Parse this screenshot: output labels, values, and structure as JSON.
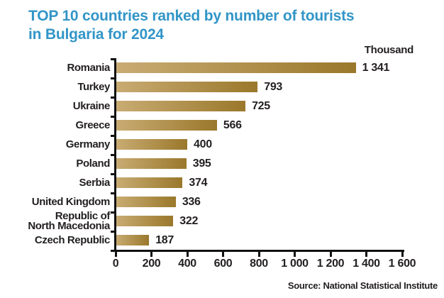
{
  "title": {
    "line1": "TOP 10 countries ranked by number of tourists",
    "line2": "in Bulgaria for 2024"
  },
  "unit_label": "Thousand",
  "source": "Source: National Statistical Institute",
  "colors": {
    "title_blue": "#3295c7",
    "bar_light": "#c9ac73",
    "bar_dark": "#9a782b",
    "text": "#231f20",
    "axis": "#111111"
  },
  "chart_data": {
    "type": "bar",
    "orientation": "horizontal",
    "title": "TOP 10 countries ranked by number of tourists in Bulgaria for 2024",
    "unit": "Thousand",
    "categories": [
      "Romania",
      "Turkey",
      "Ukraine",
      "Greece",
      "Germany",
      "Poland",
      "Serbia",
      "United Kingdom",
      "Republic of\nNorth Macedonia",
      "Czech Republic"
    ],
    "values": [
      1341,
      793,
      725,
      566,
      400,
      395,
      374,
      336,
      322,
      187
    ],
    "value_labels": [
      "1 341",
      "793",
      "725",
      "566",
      "400",
      "395",
      "374",
      "336",
      "322",
      "187"
    ],
    "xlabel": "",
    "ylabel": "",
    "xlim": [
      0,
      1600
    ],
    "x_ticks": [
      0,
      200,
      400,
      600,
      800,
      1000,
      1200,
      1400,
      1600
    ],
    "x_tick_labels": [
      "0",
      "200",
      "400",
      "600",
      "800",
      "1 000",
      "1 200",
      "1 400",
      "1 600"
    ],
    "grid": false,
    "legend": false,
    "source": "Source: National Statistical Institute"
  }
}
